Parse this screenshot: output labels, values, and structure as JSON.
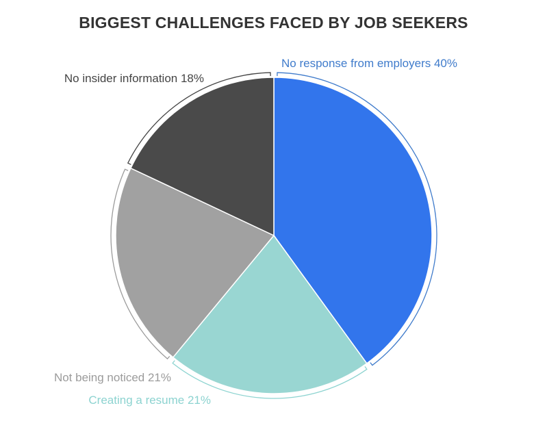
{
  "chart_data": {
    "type": "pie",
    "title": "BIGGEST CHALLENGES FACED BY JOB SEEKERS",
    "slices": [
      {
        "label": "No response from employers",
        "value": 40,
        "display": "No response from employers 40%",
        "color": "#3275EC",
        "label_color": "#3F7BCB"
      },
      {
        "label": "Creating a resume",
        "value": 21,
        "display": "Creating a resume 21%",
        "color": "#99D6D2",
        "label_color": "#8CD3D0"
      },
      {
        "label": "Not being noticed",
        "value": 21,
        "display": "Not being noticed 21%",
        "color": "#A1A1A1",
        "label_color": "#9B9B9B"
      },
      {
        "label": "No insider information",
        "value": 18,
        "display": "No insider information 18%",
        "color": "#4A4A4A",
        "label_color": "#444444"
      }
    ],
    "legend": "none"
  }
}
